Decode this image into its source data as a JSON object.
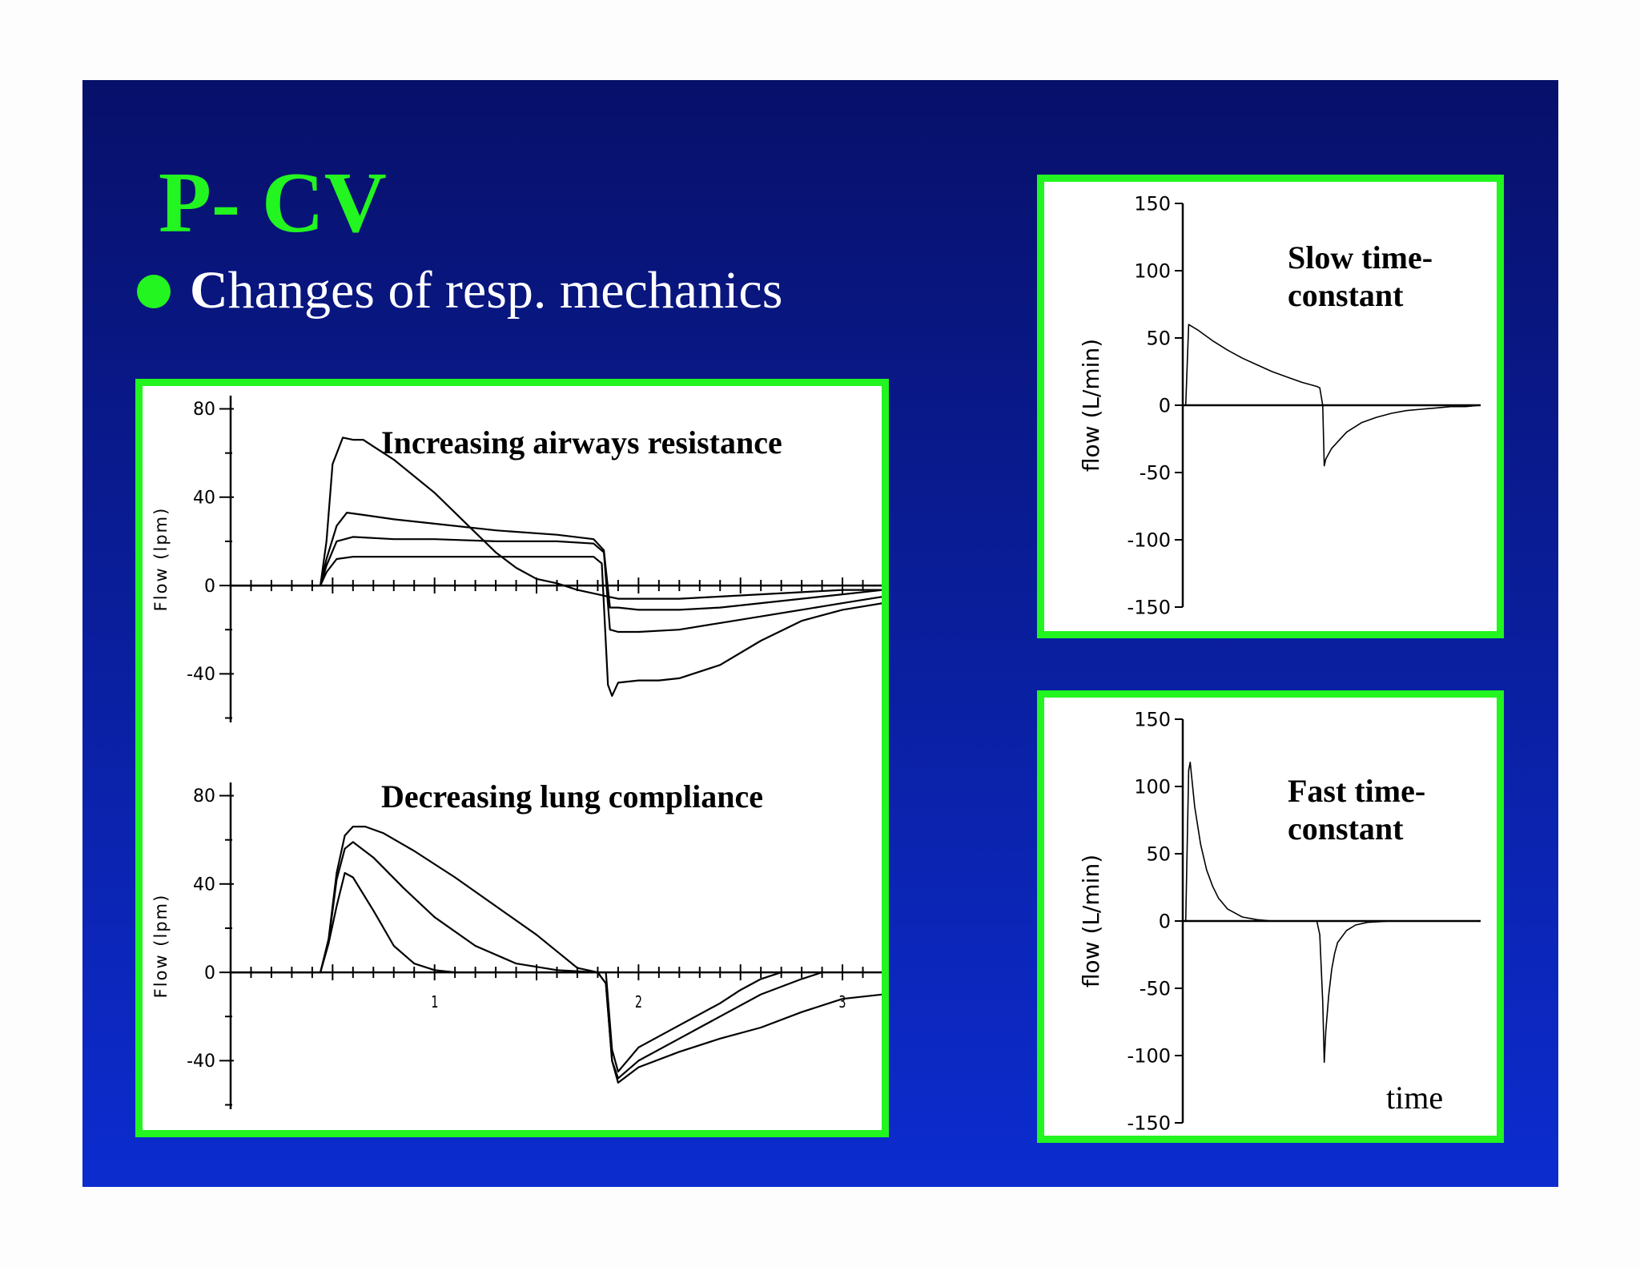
{
  "slide": {
    "title": "P- CV",
    "subtitle_bold": "C",
    "subtitle_rest": "hanges of resp. mechanics"
  },
  "colors": {
    "accent": "#22f51f",
    "text": "#ffffff",
    "trace": "#000000"
  },
  "chart_data": [
    {
      "id": "resistance",
      "type": "line",
      "title": "Increasing airways resistance",
      "ylabel": "Flow (lpm)",
      "xlim": [
        0,
        3.2
      ],
      "ylim": [
        -62,
        86
      ],
      "yticks": [
        80,
        40,
        0,
        -40
      ],
      "xtick_labels": [],
      "series": [
        {
          "x": [
            0.0,
            0.44,
            0.47,
            0.5,
            0.55,
            0.6,
            0.65,
            0.7,
            0.8,
            1.0,
            1.2,
            1.3,
            1.4,
            1.5,
            1.6,
            1.7,
            1.8,
            1.85,
            1.9,
            2.0,
            2.1,
            2.2,
            2.4,
            2.6,
            2.8,
            3.0,
            3.2
          ],
          "y": [
            0,
            0,
            20,
            55,
            67,
            66,
            66,
            63,
            57,
            42,
            24,
            15,
            8,
            3,
            1,
            -2,
            -4,
            -5,
            -6,
            -6,
            -6,
            -6,
            -5,
            -4,
            -3,
            -2,
            -2
          ]
        },
        {
          "x": [
            0.0,
            0.44,
            0.47,
            0.52,
            0.57,
            0.65,
            0.8,
            1.0,
            1.3,
            1.6,
            1.78,
            1.83,
            1.86,
            1.9,
            2.0,
            2.2,
            2.4,
            2.6,
            2.8,
            3.0,
            3.2
          ],
          "y": [
            0,
            0,
            12,
            27,
            33,
            32,
            30,
            28,
            25,
            23,
            21,
            16,
            -10,
            -10,
            -11,
            -11,
            -10,
            -8,
            -6,
            -4,
            -2
          ]
        },
        {
          "x": [
            0.0,
            0.44,
            0.47,
            0.52,
            0.6,
            0.8,
            1.0,
            1.3,
            1.6,
            1.78,
            1.83,
            1.86,
            1.9,
            2.0,
            2.2,
            2.4,
            2.6,
            2.8,
            3.0,
            3.2
          ],
          "y": [
            0,
            0,
            9,
            20,
            22,
            21,
            21,
            20,
            20,
            19,
            15,
            -20,
            -21,
            -21,
            -20,
            -17,
            -14,
            -11,
            -8,
            -5
          ]
        },
        {
          "x": [
            0.0,
            0.44,
            0.47,
            0.52,
            0.6,
            0.8,
            1.0,
            1.3,
            1.6,
            1.78,
            1.82,
            1.85,
            1.87,
            1.9,
            2.0,
            2.1,
            2.2,
            2.4,
            2.6,
            2.8,
            3.0,
            3.2
          ],
          "y": [
            0,
            0,
            6,
            12,
            13,
            13,
            13,
            13,
            13,
            13,
            10,
            -45,
            -50,
            -44,
            -43,
            -43,
            -42,
            -36,
            -25,
            -16,
            -11,
            -8
          ]
        }
      ]
    },
    {
      "id": "compliance",
      "type": "line",
      "title": "Decreasing lung compliance",
      "ylabel": "Flow (lpm)",
      "xlim": [
        0,
        3.2
      ],
      "ylim": [
        -62,
        86
      ],
      "yticks": [
        80,
        40,
        0,
        -40
      ],
      "xtick_labels": [
        {
          "x": 1,
          "label": "1"
        },
        {
          "x": 2,
          "label": "2"
        },
        {
          "x": 3,
          "label": "3"
        }
      ],
      "series": [
        {
          "x": [
            0.0,
            0.44,
            0.48,
            0.52,
            0.56,
            0.6,
            0.66,
            0.75,
            0.9,
            1.1,
            1.3,
            1.5,
            1.7,
            1.8,
            1.84,
            1.87,
            1.9,
            2.0,
            2.2,
            2.4,
            2.6,
            2.8,
            3.0,
            3.2
          ],
          "y": [
            0,
            0,
            15,
            45,
            62,
            66,
            66,
            63,
            55,
            43,
            30,
            17,
            2,
            0,
            -5,
            -40,
            -50,
            -43,
            -36,
            -30,
            -25,
            -18,
            -12,
            -10
          ]
        },
        {
          "x": [
            0.0,
            0.44,
            0.48,
            0.52,
            0.56,
            0.6,
            0.7,
            0.85,
            1.0,
            1.2,
            1.4,
            1.6,
            1.8,
            1.84,
            1.87,
            1.9,
            2.0,
            2.2,
            2.4,
            2.6,
            2.8,
            2.9
          ],
          "y": [
            0,
            0,
            14,
            42,
            56,
            59,
            52,
            38,
            25,
            12,
            4,
            1,
            0,
            -5,
            -40,
            -48,
            -40,
            -30,
            -20,
            -10,
            -3,
            0
          ]
        },
        {
          "x": [
            0.0,
            0.44,
            0.48,
            0.52,
            0.56,
            0.6,
            0.7,
            0.8,
            0.9,
            1.0,
            1.1,
            1.84,
            1.87,
            1.9,
            2.0,
            2.2,
            2.4,
            2.5,
            2.6,
            2.7
          ],
          "y": [
            0,
            0,
            13,
            30,
            45,
            43,
            28,
            12,
            4,
            1,
            0,
            0,
            -35,
            -45,
            -34,
            -24,
            -14,
            -8,
            -3,
            0
          ]
        }
      ]
    },
    {
      "id": "slow",
      "type": "line",
      "title": "Slow time-constant",
      "ylabel": "flow (L/min)",
      "xlim": [
        0,
        1
      ],
      "ylim": [
        -150,
        150
      ],
      "yticks": [
        150,
        100,
        50,
        0,
        -50,
        -100,
        -150
      ],
      "series": [
        {
          "x": [
            0.0,
            0.01,
            0.02,
            0.05,
            0.1,
            0.15,
            0.2,
            0.25,
            0.3,
            0.35,
            0.4,
            0.45,
            0.46,
            0.47,
            0.475,
            0.48,
            0.5,
            0.55,
            0.6,
            0.65,
            0.7,
            0.75,
            0.8,
            0.85,
            0.9,
            0.95,
            1.0
          ],
          "y": [
            0,
            0,
            60,
            56,
            48,
            41,
            35,
            30,
            25,
            21,
            17,
            14,
            13,
            0,
            -45,
            -40,
            -32,
            -20,
            -13,
            -9,
            -6,
            -4,
            -3,
            -2,
            -1,
            -1,
            0
          ]
        }
      ]
    },
    {
      "id": "fast",
      "type": "line",
      "title": "Fast time-constant",
      "ylabel": "flow (L/min)",
      "xlabel": "time",
      "xlim": [
        0,
        1
      ],
      "ylim": [
        -150,
        150
      ],
      "yticks": [
        150,
        100,
        50,
        0,
        -50,
        -100,
        -150
      ],
      "series": [
        {
          "x": [
            0.0,
            0.01,
            0.02,
            0.025,
            0.04,
            0.06,
            0.08,
            0.1,
            0.12,
            0.15,
            0.2,
            0.25,
            0.3,
            0.45,
            0.46,
            0.47,
            0.475,
            0.48,
            0.49,
            0.5,
            0.51,
            0.52,
            0.55,
            0.58,
            0.62,
            0.7,
            0.8,
            1.0
          ],
          "y": [
            0,
            0,
            112,
            118,
            85,
            57,
            38,
            26,
            17,
            9,
            3,
            1,
            0,
            0,
            -10,
            -60,
            -105,
            -82,
            -55,
            -36,
            -24,
            -16,
            -7,
            -3,
            -1,
            0,
            0,
            0
          ]
        }
      ]
    }
  ]
}
